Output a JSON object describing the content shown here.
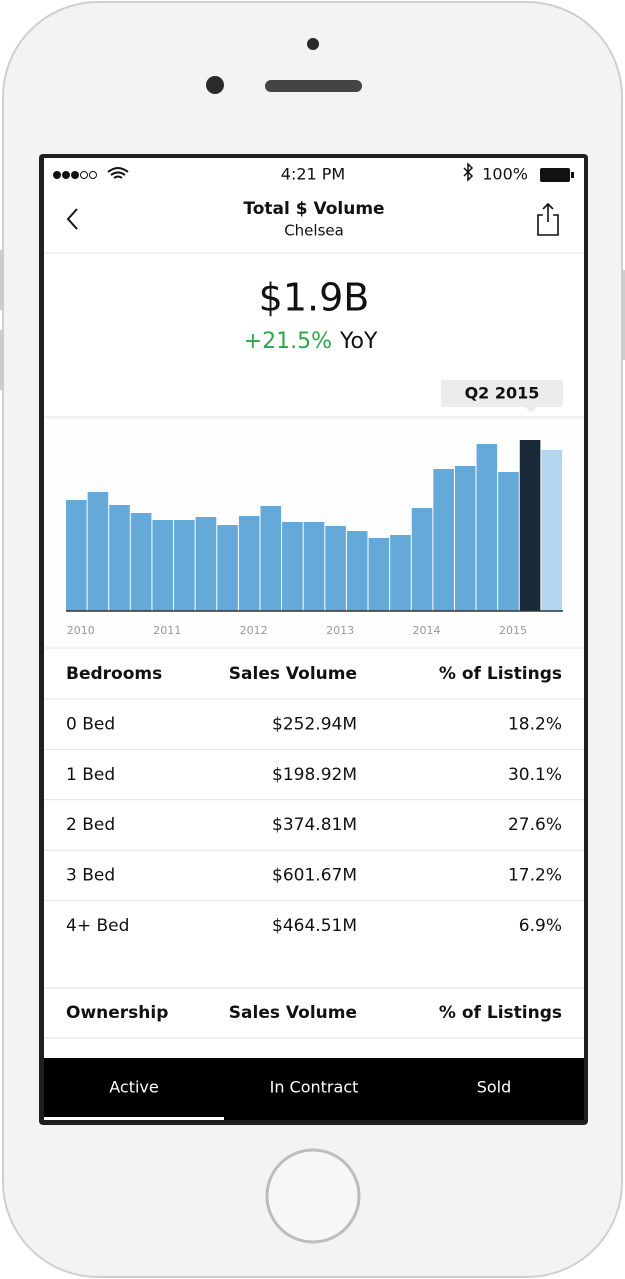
{
  "status_bar": {
    "time": "4:21 PM",
    "battery": "100%"
  },
  "header": {
    "title": "Total $ Volume",
    "subtitle": "Chelsea"
  },
  "summary": {
    "value": "$1.9B",
    "change": "+21.5%",
    "change_unit": "YoY"
  },
  "chart_data": {
    "type": "bar",
    "categories": [
      "2010",
      null,
      null,
      null,
      "2011",
      null,
      null,
      null,
      "2012",
      null,
      null,
      null,
      "2013",
      null,
      null,
      null,
      "2014",
      null,
      null,
      null,
      "2015",
      null,
      null
    ],
    "values": [
      111,
      119,
      106,
      98,
      91,
      91,
      94,
      86,
      95,
      105,
      89,
      89,
      85,
      80,
      73,
      76,
      103,
      142,
      145,
      167,
      139,
      171,
      161
    ],
    "colors": [
      "#64a9d8",
      "#64a9d8",
      "#64a9d8",
      "#64a9d8",
      "#64a9d8",
      "#64a9d8",
      "#64a9d8",
      "#64a9d8",
      "#64a9d8",
      "#64a9d8",
      "#64a9d8",
      "#64a9d8",
      "#64a9d8",
      "#64a9d8",
      "#64a9d8",
      "#64a9d8",
      "#64a9d8",
      "#64a9d8",
      "#64a9d8",
      "#64a9d8",
      "#64a9d8",
      "#1b2a38",
      "#b3d6ee"
    ],
    "ylim": [
      0,
      190
    ],
    "annotation": "Q2 2015"
  },
  "bedrooms_table": {
    "columns": [
      "Bedrooms",
      "Sales Volume",
      "% of Listings"
    ],
    "rows": [
      [
        "0 Bed",
        "$252.94M",
        "18.2%"
      ],
      [
        "1 Bed",
        "$198.92M",
        "30.1%"
      ],
      [
        "2 Bed",
        "$374.81M",
        "27.6%"
      ],
      [
        "3 Bed",
        "$601.67M",
        "17.2%"
      ],
      [
        "4+ Bed",
        "$464.51M",
        "6.9%"
      ]
    ]
  },
  "ownership_table": {
    "columns": [
      "Ownership",
      "Sales Volume",
      "% of Listings"
    ]
  },
  "tabs": [
    "Active",
    "In Contract",
    "Sold"
  ]
}
